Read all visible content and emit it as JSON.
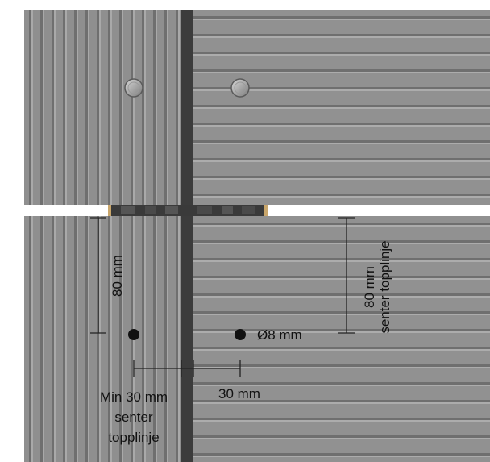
{
  "labels": {
    "vertical_left": "80 mm",
    "vertical_right_line1": "80 mm",
    "vertical_right_line2": "senter topplinje",
    "hole_diameter": "Ø8 mm",
    "horizontal_right": "30 mm",
    "horizontal_left_line1": "Min 30 mm",
    "horizontal_left_line2": "senter",
    "horizontal_left_line3": "topplinje"
  },
  "colors": {
    "board": "#8f8f8f",
    "groove_dark": "#6a6a6a",
    "groove_light": "#b0b0b0",
    "joint_dark": "#3c3c3c",
    "gap_white": "#ffffff",
    "spacer_wood": "#c9a66b",
    "hole_fill": "#111111",
    "dimension_line": "#222222"
  },
  "icons": {
    "screw_head": "round-screw-head-icon",
    "drill_hole": "filled-circle-icon"
  }
}
